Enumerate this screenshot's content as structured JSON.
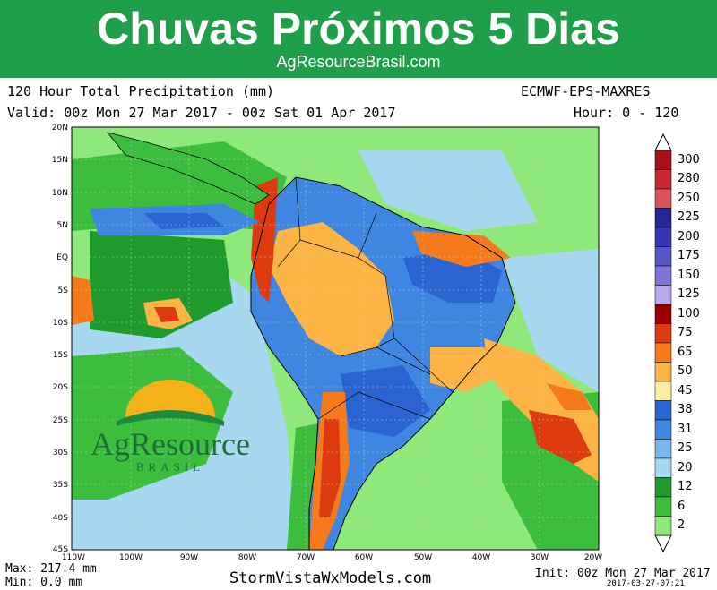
{
  "banner": {
    "title": "Chuvas Próximos 5 Dias",
    "subtitle": "AgResourceBrasil.com"
  },
  "header": {
    "title": "120 Hour Total Precipitation (mm)",
    "model": "ECMWF-EPS-MAXRES",
    "valid": "Valid: 00z Mon 27 Mar 2017 - 00z Sat 01 Apr 2017",
    "hour": "Hour: 0 - 120"
  },
  "map": {
    "lat_labels": [
      "20N",
      "15N",
      "10N",
      "5N",
      "EQ",
      "5S",
      "10S",
      "15S",
      "20S",
      "25S",
      "30S",
      "35S",
      "40S",
      "45S"
    ],
    "lon_labels": [
      "110W",
      "100W",
      "90W",
      "80W",
      "70W",
      "60W",
      "50W",
      "40W",
      "30W",
      "20W"
    ]
  },
  "colorbar": {
    "labels": [
      "300",
      "280",
      "250",
      "225",
      "200",
      "175",
      "150",
      "125",
      "100",
      "75",
      "65",
      "50",
      "45",
      "38",
      "31",
      "25",
      "20",
      "12",
      "6",
      "2"
    ],
    "colors": [
      "#a5111a",
      "#c42a2f",
      "#d85357",
      "#262691",
      "#3636b4",
      "#5656c6",
      "#7c74d6",
      "#b8a8ec",
      "#9a0000",
      "#dd3a10",
      "#f57a1c",
      "#fcb445",
      "#f8f0a0",
      "#2b63d0",
      "#3e86e0",
      "#7ab6ea",
      "#a8d8ef",
      "#1f9a2c",
      "#3dbd3d",
      "#8fe87a"
    ]
  },
  "logo": {
    "name": "AgResource",
    "sub": "BRASIL"
  },
  "footer": {
    "max": "Max: 217.4 mm",
    "min": "Min: 0.0 mm",
    "site": "StormVistaWxModels.com",
    "init": "Init: 00z Mon 27 Mar 2017",
    "stamp": "2017-03-27-07:21"
  }
}
